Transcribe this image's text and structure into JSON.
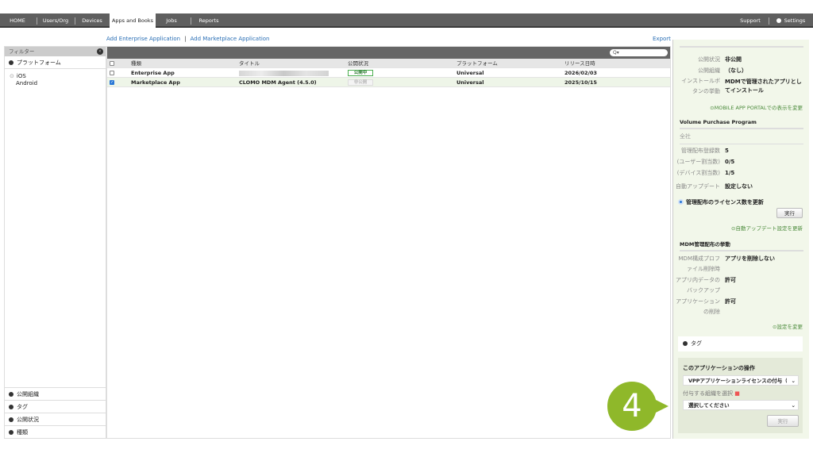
{
  "nav": {
    "tabs": [
      "HOME",
      "Users/Org",
      "Devices",
      "Apps and Books",
      "Jobs",
      "Reports"
    ],
    "active": "Apps and Books",
    "support": "Support",
    "settings": "Settings"
  },
  "links": {
    "add_enterprise": "Add Enterprise Application",
    "separator": "|",
    "add_marketplace": "Add Marketplace Application",
    "export": "Export"
  },
  "filter": {
    "title": "フィルター",
    "platform": "プラットフォーム",
    "platform_options": [
      "iOS",
      "Android"
    ],
    "bottom": [
      "公開組織",
      "タグ",
      "公開状況",
      "種類"
    ]
  },
  "table": {
    "search_placeholder": "Q▾",
    "headers": [
      "種類",
      "タイトル",
      "公開状況",
      "プラットフォーム",
      "リリース日時"
    ],
    "rows": [
      {
        "type": "Enterprise App",
        "title": "",
        "status": "公開中",
        "platform": "Universal",
        "date": "2026/02/03",
        "checked": false
      },
      {
        "type": "Marketplace App",
        "title": "CLOMO MDM Agent (4.5.0)",
        "status": "非公開",
        "platform": "Universal",
        "date": "2025/10/15",
        "checked": true
      }
    ]
  },
  "detail": {
    "info": [
      {
        "k": "公開状況",
        "v": "非公開"
      },
      {
        "k": "公開組織",
        "v": "（なし）"
      },
      {
        "k": "インストールボタンの挙動",
        "v": "MDMで管理されたアプリとしてインストール"
      }
    ],
    "portal_link": "MOBILE APP PORTALでの表示を変更",
    "vpp_title": "Volume Purchase Program",
    "vpp_scope": "全社",
    "vpp": [
      {
        "k": "管理配布登録数",
        "v": "5"
      },
      {
        "k": "(ユーザー割当数)",
        "v": "0/5"
      },
      {
        "k": "(デバイス割当数)",
        "v": "1/5"
      },
      {
        "k": "自動アップデート",
        "v": "設定しない"
      }
    ],
    "radio_label": "管理配布のライセンス数を更新",
    "run": "実行",
    "auto_update_link": "自動アップデート設定を更新",
    "mdm_title": "MDM管理配布の挙動",
    "mdm": [
      {
        "k": "MDM構成プロファイル削除時",
        "v": "アプリを削除しない"
      },
      {
        "k": "アプリ内データのバックアップ",
        "v": "許可"
      },
      {
        "k": "アプリケーションの削除",
        "v": "許可"
      }
    ],
    "settings_link": "設定を変更",
    "tag": "タグ",
    "ops_title": "このアプリケーションの操作",
    "ops_select": "VPPアプリケーションライセンスの付与（法",
    "org_label": "付与する組織を選択",
    "org_select": "選択してください",
    "ops_run": "実行"
  },
  "callout": "4",
  "colors": {
    "accent": "#8fb82a",
    "nav": "#5f5f5f",
    "panel": "#f2f7ea",
    "link": "#2a6fb5"
  }
}
